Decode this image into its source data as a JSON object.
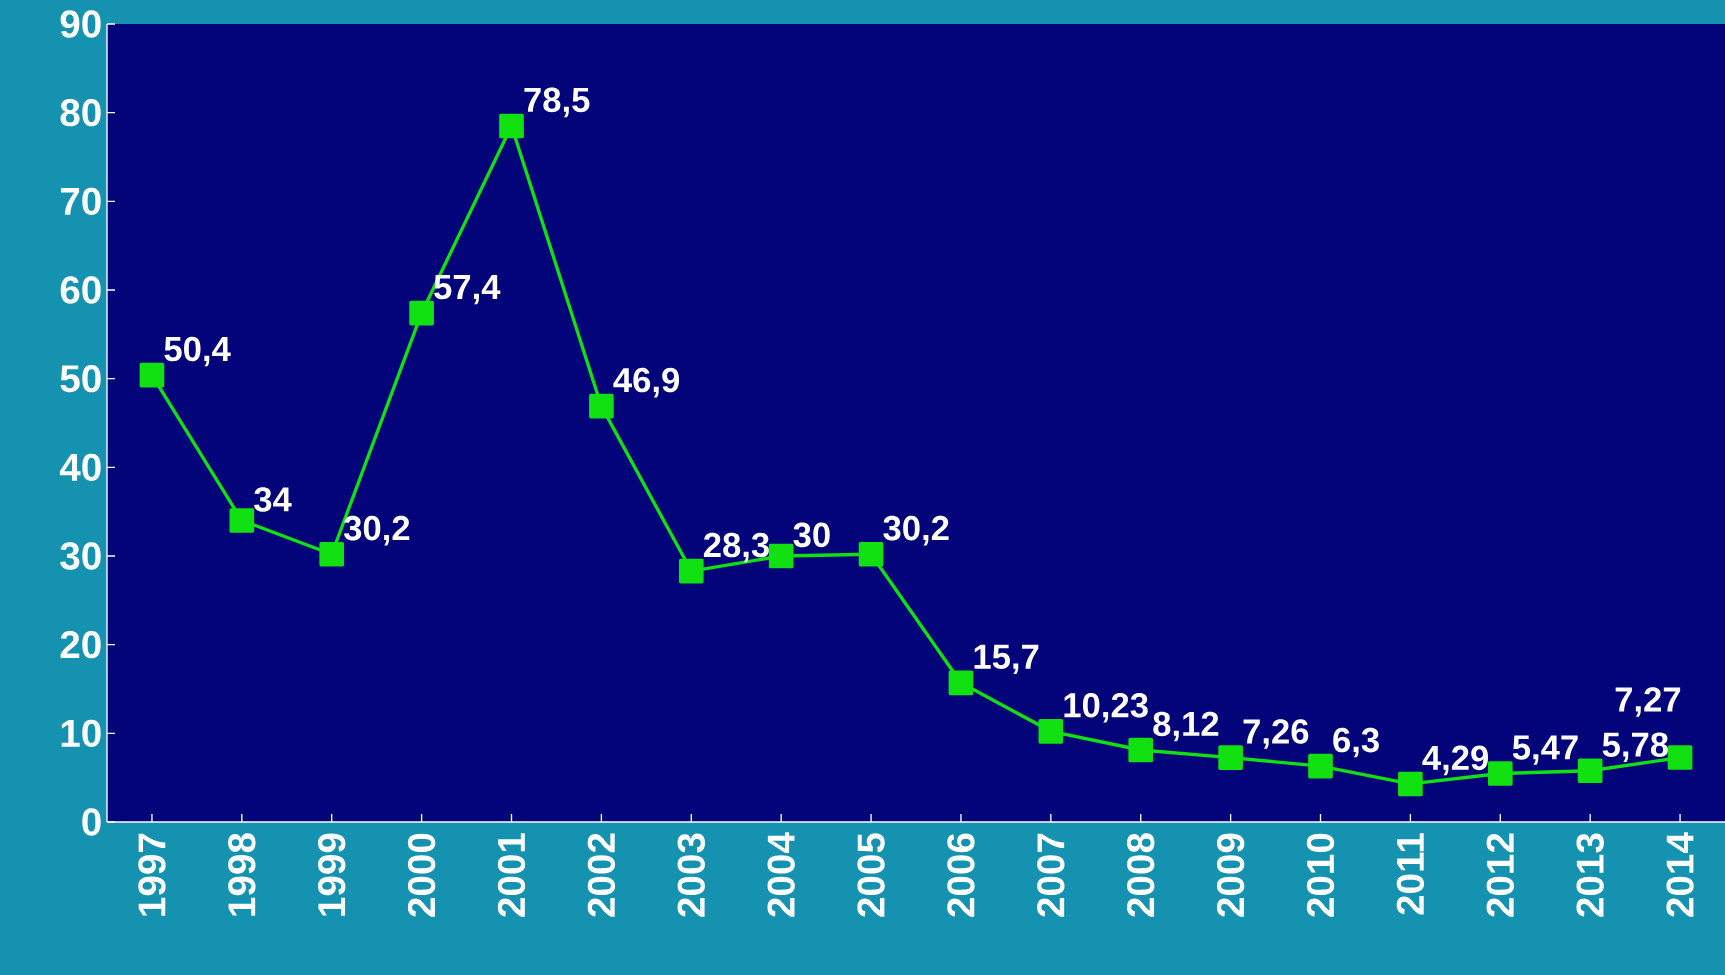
{
  "chart_data": {
    "type": "line",
    "categories": [
      "1997",
      "1998",
      "1999",
      "2000",
      "2001",
      "2002",
      "2003",
      "2004",
      "2005",
      "2006",
      "2007",
      "2008",
      "2009",
      "2010",
      "2011",
      "2012",
      "2013",
      "2014"
    ],
    "values": [
      50.4,
      34,
      30.2,
      57.4,
      78.5,
      46.9,
      28.3,
      30,
      30.2,
      15.7,
      10.23,
      8.12,
      7.26,
      6.3,
      4.29,
      5.47,
      5.78,
      7.27
    ],
    "value_labels": [
      "50,4",
      "34",
      "30,2",
      "57,4",
      "78,5",
      "46,9",
      "28,3",
      "30",
      "30,2",
      "15,7",
      "10,23",
      "8,12",
      "7,26",
      "6,3",
      "4,29",
      "5,47",
      "5,78",
      "7,27"
    ],
    "color": "#11e011",
    "marker": "square",
    "line_style": "solid",
    "ylim": [
      0,
      90
    ],
    "yticks": [
      0,
      10,
      20,
      30,
      40,
      50,
      60,
      70,
      80,
      90
    ]
  }
}
